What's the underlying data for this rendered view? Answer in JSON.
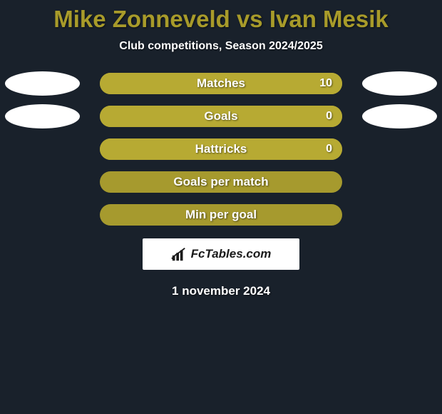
{
  "background_color": "#19212b",
  "title": {
    "text": "Mike Zonneveld vs Ivan Mesik",
    "color": "#a89b2a",
    "fontsize": 33
  },
  "subtitle": {
    "text": "Club competitions, Season 2024/2025",
    "color": "#ffffff",
    "fontsize": 16
  },
  "stat_text_color": "#ffffff",
  "track_color": "#a69a2e",
  "fill_color": "#b7aa33",
  "ellipse_color": "#ffffff",
  "rows": [
    {
      "label": "Matches",
      "value_right": "10",
      "fill_pct": 100,
      "show_left_ellipse": true,
      "show_right_ellipse": true,
      "show_value": true
    },
    {
      "label": "Goals",
      "value_right": "0",
      "fill_pct": 100,
      "show_left_ellipse": true,
      "show_right_ellipse": true,
      "show_value": true
    },
    {
      "label": "Hattricks",
      "value_right": "0",
      "fill_pct": 100,
      "show_left_ellipse": false,
      "show_right_ellipse": false,
      "show_value": true
    },
    {
      "label": "Goals per match",
      "value_right": "",
      "fill_pct": 0,
      "show_left_ellipse": false,
      "show_right_ellipse": false,
      "show_value": false
    },
    {
      "label": "Min per goal",
      "value_right": "",
      "fill_pct": 0,
      "show_left_ellipse": false,
      "show_right_ellipse": false,
      "show_value": false
    }
  ],
  "brand": {
    "text": "FcTables.com",
    "box_bg": "#ffffff",
    "text_color": "#1a1a1a",
    "icon_color": "#1a1a1a"
  },
  "date": {
    "text": "1 november 2024",
    "color": "#ffffff"
  }
}
